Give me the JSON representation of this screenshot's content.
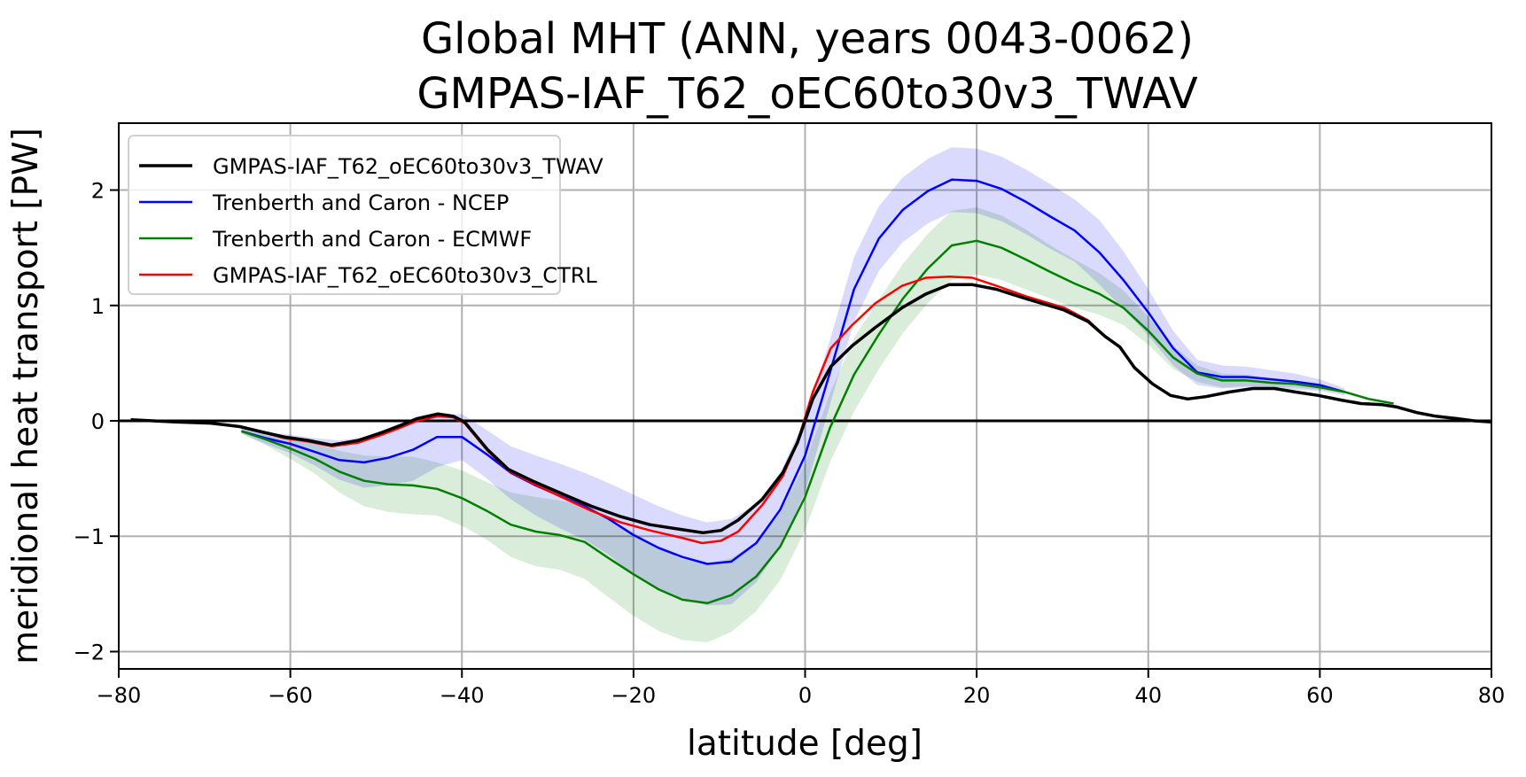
{
  "chart_data": {
    "type": "line",
    "title": "Global MHT (ANN, years 0043-0062)",
    "subtitle": "GMPAS-IAF_T62_oEC60to30v3_TWAV",
    "xlabel": "latitude [deg]",
    "ylabel": "meridional heat transport [PW]",
    "xlim": [
      -80,
      80
    ],
    "ylim": [
      -2.15,
      2.58
    ],
    "xticks": [
      -80,
      -60,
      -40,
      -20,
      0,
      20,
      40,
      60,
      80
    ],
    "xtick_labels": [
      "−80",
      "−60",
      "−40",
      "−20",
      "0",
      "20",
      "40",
      "60",
      "80"
    ],
    "yticks": [
      -2,
      -1,
      0,
      1,
      2
    ],
    "ytick_labels": [
      "−2",
      "−1",
      "0",
      "1",
      "2"
    ],
    "grid": true,
    "zero_line": true,
    "legend_position": "top-left",
    "legend": [
      "GMPAS-IAF_T62_oEC60to30v3_TWAV",
      "Trenberth and Caron - NCEP",
      "Trenberth and Caron - ECMWF",
      "GMPAS-IAF_T62_oEC60to30v3_CTRL"
    ],
    "series": [
      {
        "name": "GMPAS-IAF_T62_oEC60to30v3_TWAV",
        "color": "#000000",
        "x": [
          -78.6,
          -73.4,
          -69.3,
          -65.9,
          -63.1,
          -60.7,
          -57.9,
          -55.2,
          -52.1,
          -49.3,
          -47.2,
          -45.2,
          -42.8,
          -41.0,
          -39.7,
          -37.0,
          -34.6,
          -31.8,
          -28.4,
          -24.9,
          -21.5,
          -18.1,
          -14.6,
          -11.9,
          -9.8,
          -7.8,
          -5.0,
          -2.6,
          -0.9,
          0.9,
          3.0,
          5.5,
          8.2,
          11.3,
          14.1,
          16.8,
          19.5,
          22.3,
          25.7,
          30.2,
          33.0,
          35.0,
          36.7,
          38.4,
          40.5,
          42.6,
          44.6,
          46.7,
          49.5,
          52.2,
          54.7,
          57.1,
          59.8,
          62.5,
          64.8,
          67.3,
          69.0,
          71.4,
          73.5,
          75.9,
          78.0,
          80.0
        ],
        "y": [
          0.01,
          -0.01,
          -0.02,
          -0.05,
          -0.1,
          -0.14,
          -0.17,
          -0.21,
          -0.17,
          -0.1,
          -0.04,
          0.02,
          0.06,
          0.04,
          -0.01,
          -0.25,
          -0.42,
          -0.52,
          -0.63,
          -0.74,
          -0.83,
          -0.9,
          -0.94,
          -0.97,
          -0.95,
          -0.86,
          -0.68,
          -0.45,
          -0.19,
          0.19,
          0.47,
          0.65,
          0.81,
          0.98,
          1.1,
          1.18,
          1.18,
          1.14,
          1.06,
          0.96,
          0.86,
          0.73,
          0.64,
          0.46,
          0.32,
          0.22,
          0.19,
          0.21,
          0.25,
          0.28,
          0.28,
          0.25,
          0.22,
          0.18,
          0.15,
          0.14,
          0.12,
          0.07,
          0.04,
          0.02,
          0.0,
          -0.01
        ]
      },
      {
        "name": "Trenberth and Caron - NCEP",
        "color": "#0000ff",
        "band_color": "#ccccff",
        "x": [
          -65.7,
          -62.9,
          -60.0,
          -57.1,
          -54.3,
          -51.4,
          -48.6,
          -45.7,
          -42.9,
          -40.0,
          -37.1,
          -34.3,
          -31.4,
          -28.6,
          -25.7,
          -22.9,
          -20.0,
          -17.1,
          -14.3,
          -11.4,
          -8.6,
          -5.7,
          -2.9,
          0.0,
          2.9,
          5.7,
          8.6,
          11.4,
          14.3,
          17.1,
          20.0,
          22.9,
          25.7,
          28.6,
          31.4,
          34.3,
          37.1,
          40.0,
          42.9,
          45.7,
          48.6,
          51.4,
          54.3,
          57.1,
          60.0,
          62.9
        ],
        "y": [
          -0.09,
          -0.15,
          -0.2,
          -0.27,
          -0.34,
          -0.36,
          -0.32,
          -0.25,
          -0.14,
          -0.14,
          -0.29,
          -0.45,
          -0.56,
          -0.65,
          -0.74,
          -0.85,
          -0.99,
          -1.1,
          -1.18,
          -1.24,
          -1.22,
          -1.06,
          -0.77,
          -0.3,
          0.42,
          1.14,
          1.58,
          1.83,
          1.99,
          2.09,
          2.08,
          2.01,
          1.9,
          1.77,
          1.65,
          1.46,
          1.22,
          0.94,
          0.63,
          0.42,
          0.38,
          0.38,
          0.36,
          0.34,
          0.31,
          0.25
        ],
        "upper": [
          -0.07,
          -0.1,
          -0.12,
          -0.15,
          -0.17,
          -0.14,
          -0.08,
          0.02,
          0.05,
          0.06,
          -0.08,
          -0.22,
          -0.3,
          -0.37,
          -0.45,
          -0.54,
          -0.64,
          -0.74,
          -0.82,
          -0.88,
          -0.85,
          -0.72,
          -0.45,
          0.02,
          0.7,
          1.42,
          1.86,
          2.11,
          2.27,
          2.37,
          2.36,
          2.29,
          2.18,
          2.05,
          1.92,
          1.74,
          1.47,
          1.14,
          0.78,
          0.53,
          0.48,
          0.47,
          0.44,
          0.41,
          0.36,
          0.28
        ],
        "lower": [
          -0.11,
          -0.2,
          -0.28,
          -0.39,
          -0.51,
          -0.58,
          -0.56,
          -0.52,
          -0.4,
          -0.34,
          -0.5,
          -0.68,
          -0.82,
          -0.93,
          -1.03,
          -1.16,
          -1.34,
          -1.46,
          -1.54,
          -1.6,
          -1.59,
          -1.4,
          -1.09,
          -0.62,
          0.14,
          0.86,
          1.3,
          1.55,
          1.71,
          1.81,
          1.8,
          1.73,
          1.62,
          1.49,
          1.38,
          1.18,
          0.97,
          0.74,
          0.48,
          0.31,
          0.28,
          0.29,
          0.28,
          0.27,
          0.26,
          0.22
        ]
      },
      {
        "name": "Trenberth and Caron - ECMWF",
        "color": "#008000",
        "band_color": "#cce6cc",
        "x": [
          -65.7,
          -62.9,
          -60.0,
          -57.1,
          -54.3,
          -51.4,
          -48.6,
          -45.7,
          -42.9,
          -40.0,
          -37.1,
          -34.3,
          -31.4,
          -28.6,
          -25.7,
          -22.9,
          -20.0,
          -17.1,
          -14.3,
          -11.4,
          -8.6,
          -5.7,
          -2.9,
          0.0,
          2.9,
          5.7,
          8.6,
          11.4,
          14.3,
          17.1,
          20.0,
          22.9,
          25.7,
          28.6,
          31.4,
          34.3,
          37.1,
          40.0,
          42.9,
          45.7,
          48.6,
          51.4,
          54.3,
          57.1,
          60.0,
          62.9,
          65.7,
          68.6
        ],
        "y": [
          -0.09,
          -0.16,
          -0.24,
          -0.33,
          -0.44,
          -0.52,
          -0.55,
          -0.56,
          -0.59,
          -0.67,
          -0.78,
          -0.9,
          -0.96,
          -0.99,
          -1.05,
          -1.19,
          -1.33,
          -1.46,
          -1.55,
          -1.58,
          -1.51,
          -1.35,
          -1.09,
          -0.66,
          -0.06,
          0.4,
          0.75,
          1.06,
          1.32,
          1.52,
          1.56,
          1.5,
          1.4,
          1.29,
          1.19,
          1.1,
          0.98,
          0.78,
          0.55,
          0.41,
          0.35,
          0.35,
          0.33,
          0.32,
          0.29,
          0.25,
          0.19,
          0.15
        ],
        "upper": [
          -0.07,
          -0.11,
          -0.15,
          -0.2,
          -0.26,
          -0.3,
          -0.31,
          -0.31,
          -0.36,
          -0.43,
          -0.53,
          -0.62,
          -0.66,
          -0.69,
          -0.73,
          -0.85,
          -0.97,
          -1.1,
          -1.2,
          -1.24,
          -1.19,
          -1.05,
          -0.8,
          -0.37,
          0.24,
          0.72,
          1.05,
          1.36,
          1.62,
          1.82,
          1.85,
          1.78,
          1.66,
          1.52,
          1.4,
          1.28,
          1.13,
          0.9,
          0.65,
          0.48,
          0.41,
          0.4,
          0.37,
          0.35,
          0.31,
          0.26,
          0.2,
          0.16
        ],
        "lower": [
          -0.11,
          -0.21,
          -0.33,
          -0.46,
          -0.62,
          -0.74,
          -0.79,
          -0.81,
          -0.82,
          -0.91,
          -1.03,
          -1.18,
          -1.26,
          -1.29,
          -1.37,
          -1.53,
          -1.69,
          -1.82,
          -1.9,
          -1.92,
          -1.83,
          -1.65,
          -1.38,
          -0.95,
          -0.36,
          0.08,
          0.45,
          0.76,
          1.02,
          1.22,
          1.27,
          1.22,
          1.14,
          1.06,
          0.98,
          0.92,
          0.83,
          0.66,
          0.45,
          0.34,
          0.29,
          0.3,
          0.29,
          0.29,
          0.27,
          0.24,
          0.18,
          0.14
        ]
      },
      {
        "name": "GMPAS-IAF_T62_oEC60to30v3_CTRL",
        "color": "#ff0000",
        "x": [
          -78.6,
          -73.4,
          -69.3,
          -65.9,
          -63.1,
          -60.7,
          -57.9,
          -55.2,
          -52.1,
          -49.3,
          -47.2,
          -45.2,
          -42.8,
          -41.0,
          -39.7,
          -37.0,
          -34.6,
          -31.8,
          -28.4,
          -24.9,
          -21.5,
          -18.1,
          -14.6,
          -12.0,
          -9.8,
          -7.8,
          -5.0,
          -2.6,
          -0.9,
          0.9,
          3.0,
          5.5,
          8.2,
          11.3,
          14.1,
          16.8,
          19.5,
          22.3,
          25.7,
          30.2,
          33.0,
          35.0,
          36.7,
          38.4,
          40.5,
          42.6,
          44.6,
          46.7,
          49.5,
          52.2,
          54.7,
          57.1,
          59.8,
          62.5,
          64.8,
          67.3,
          69.0,
          71.4,
          73.5,
          75.9,
          78.0
        ],
        "y": [
          0.01,
          -0.01,
          -0.02,
          -0.05,
          -0.1,
          -0.15,
          -0.18,
          -0.22,
          -0.19,
          -0.12,
          -0.06,
          0.0,
          0.04,
          0.03,
          -0.02,
          -0.26,
          -0.43,
          -0.54,
          -0.66,
          -0.78,
          -0.88,
          -0.95,
          -1.01,
          -1.06,
          -1.04,
          -0.96,
          -0.73,
          -0.48,
          -0.19,
          0.25,
          0.63,
          0.83,
          1.02,
          1.17,
          1.24,
          1.25,
          1.24,
          1.17,
          1.08,
          0.98,
          0.87,
          0.73,
          0.64,
          0.46,
          0.32,
          0.22,
          0.19,
          0.21,
          0.25,
          0.28,
          0.28,
          0.25,
          0.22,
          0.18,
          0.15,
          0.14,
          0.12,
          0.07,
          0.04,
          0.02,
          0.0
        ]
      }
    ]
  }
}
